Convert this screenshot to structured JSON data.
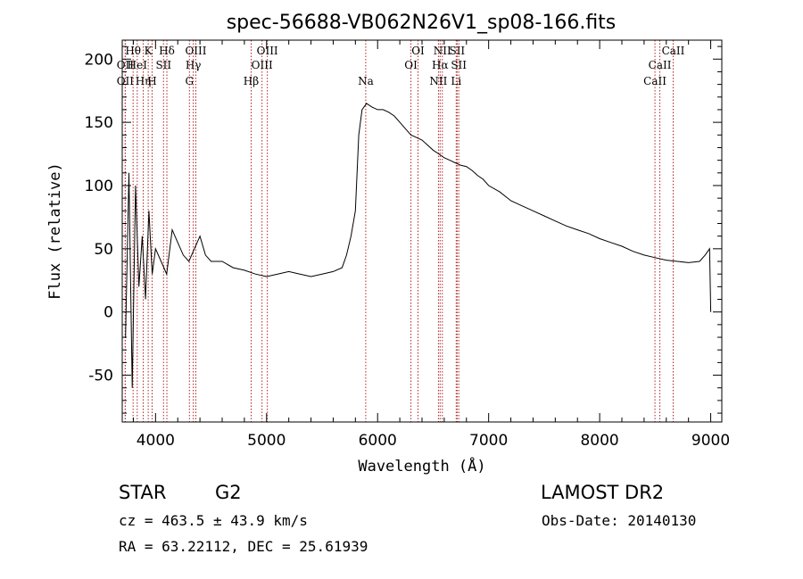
{
  "chart_data": {
    "type": "line",
    "title": "spec-56688-VB062N26V1_sp08-166.fits",
    "xlabel": "Wavelength (Å)",
    "ylabel": "Flux (relative)",
    "xlim": [
      3700,
      9100
    ],
    "ylim": [
      -87,
      215
    ],
    "xticks": [
      4000,
      5000,
      6000,
      7000,
      8000,
      9000
    ],
    "yticks": [
      -50,
      0,
      50,
      100,
      150,
      200
    ],
    "line_color": "#000000",
    "marker_color": "#b22222",
    "series": [
      {
        "x": [
          3730,
          3760,
          3790,
          3820,
          3850,
          3880,
          3910,
          3940,
          3970,
          4000,
          4050,
          4100,
          4150,
          4200,
          4250,
          4300,
          4350,
          4400,
          4450,
          4500,
          4600,
          4700,
          4800,
          4900,
          5000,
          5100,
          5200,
          5300,
          5400,
          5500,
          5600,
          5680,
          5720,
          5760,
          5800,
          5830,
          5860,
          5900,
          5950,
          6000,
          6050,
          6100,
          6150,
          6200,
          6250,
          6300,
          6350,
          6400,
          6450,
          6500,
          6550,
          6600,
          6650,
          6700,
          6750,
          6800,
          6850,
          6900,
          6950,
          7000,
          7100,
          7200,
          7300,
          7400,
          7500,
          7600,
          7700,
          7800,
          7900,
          8000,
          8100,
          8200,
          8300,
          8400,
          8500,
          8600,
          8700,
          8800,
          8900,
          8950,
          8990,
          9000
        ],
        "y": [
          -20,
          110,
          -60,
          100,
          20,
          60,
          10,
          80,
          30,
          50,
          40,
          30,
          65,
          55,
          45,
          40,
          50,
          60,
          45,
          40,
          40,
          35,
          33,
          30,
          28,
          30,
          32,
          30,
          28,
          30,
          32,
          35,
          45,
          60,
          80,
          140,
          160,
          165,
          162,
          160,
          160,
          158,
          155,
          150,
          145,
          140,
          138,
          136,
          132,
          128,
          125,
          122,
          120,
          118,
          116,
          115,
          112,
          108,
          105,
          100,
          95,
          88,
          84,
          80,
          76,
          72,
          68,
          65,
          62,
          58,
          55,
          52,
          48,
          45,
          43,
          41,
          40,
          39,
          40,
          45,
          50,
          0
        ]
      }
    ],
    "emission_lines": [
      {
        "label": "OII",
        "x": 3727,
        "row": 3
      },
      {
        "label": "OII",
        "x": 3727,
        "row": 2
      },
      {
        "label": "Hθ",
        "x": 3798,
        "row": 1
      },
      {
        "label": "HeI",
        "x": 3835,
        "row": 2
      },
      {
        "label": "Hη",
        "x": 3889,
        "row": 3
      },
      {
        "label": "K",
        "x": 3934,
        "row": 1
      },
      {
        "label": "SII",
        "x": 4072,
        "row": 2
      },
      {
        "label": "H",
        "x": 3969,
        "row": 3
      },
      {
        "label": "Hδ",
        "x": 4102,
        "row": 1
      },
      {
        "label": "OIII",
        "x": 4363,
        "row": 1
      },
      {
        "label": "Hγ",
        "x": 4340,
        "row": 2
      },
      {
        "label": "G",
        "x": 4305,
        "row": 3
      },
      {
        "label": "Hβ",
        "x": 4861,
        "row": 3
      },
      {
        "label": "OIII",
        "x": 5007,
        "row": 1
      },
      {
        "label": "OIII",
        "x": 4959,
        "row": 2
      },
      {
        "label": "Na",
        "x": 5893,
        "row": 3
      },
      {
        "label": "OI",
        "x": 6364,
        "row": 1
      },
      {
        "label": "OI",
        "x": 6300,
        "row": 2
      },
      {
        "label": "NII",
        "x": 6583,
        "row": 1
      },
      {
        "label": "Hα",
        "x": 6563,
        "row": 2
      },
      {
        "label": "NII",
        "x": 6548,
        "row": 3
      },
      {
        "label": "SII",
        "x": 6716,
        "row": 1
      },
      {
        "label": "SII",
        "x": 6731,
        "row": 2
      },
      {
        "label": "Li",
        "x": 6708,
        "row": 3
      },
      {
        "label": "CaII",
        "x": 8662,
        "row": 1
      },
      {
        "label": "CaII",
        "x": 8542,
        "row": 2
      },
      {
        "label": "CaII",
        "x": 8498,
        "row": 3
      }
    ]
  },
  "info": {
    "class": "STAR",
    "subclass": "G2",
    "survey": "LAMOST DR2",
    "cz": "cz = 463.5 ± 43.9 km/s",
    "obs_date": "Obs-Date: 20140130",
    "coords": "RA =  63.22112, DEC =  25.61939"
  }
}
